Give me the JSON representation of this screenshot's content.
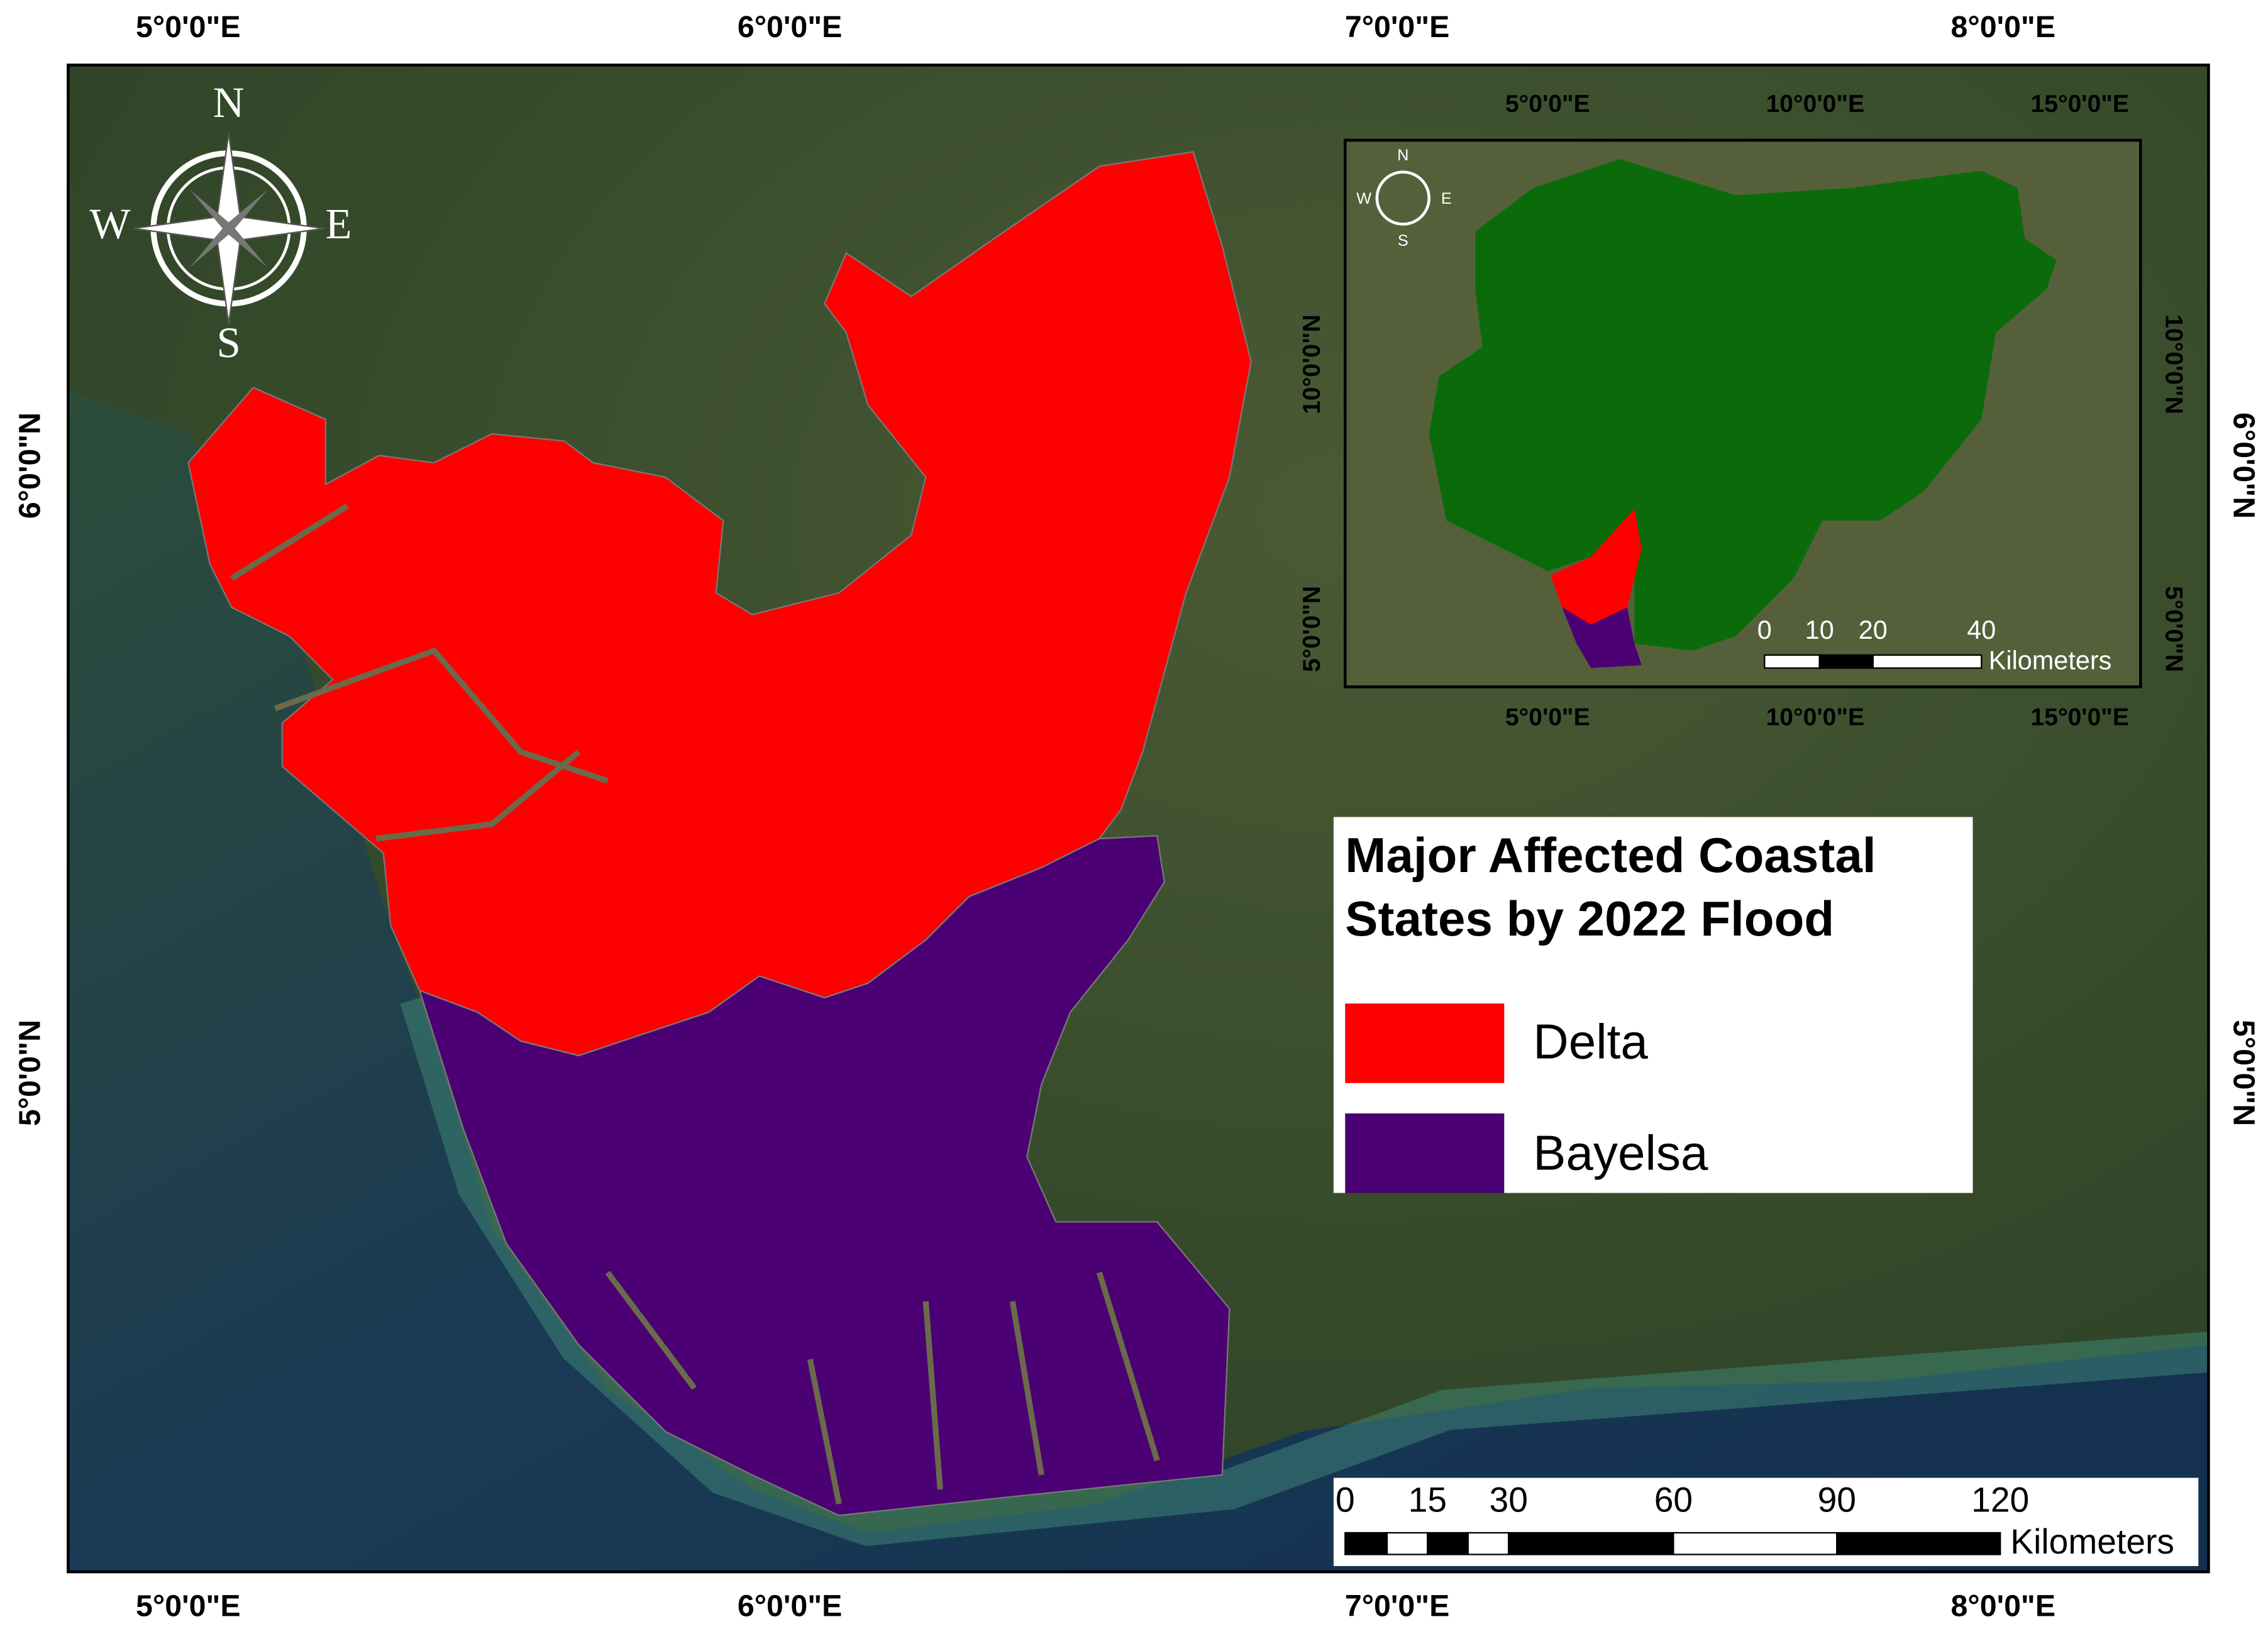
{
  "map": {
    "longitude_labels": [
      "5°0'0\"E",
      "6°0'0\"E",
      "7°0'0\"E",
      "8°0'0\"E"
    ],
    "latitude_labels": [
      "6°0'0\"N",
      "5°0'0\"N"
    ],
    "compass": {
      "n": "N",
      "e": "E",
      "s": "S",
      "w": "W"
    },
    "inset": {
      "longitude_labels": [
        "5°0'0\"E",
        "10°0'0\"E",
        "15°0'0\"E"
      ],
      "latitude_labels": [
        "10°0'0\"N",
        "5°0'0\"N"
      ],
      "compass": {
        "n": "N",
        "e": "E",
        "s": "S",
        "w": "W"
      },
      "country_color": "#0b6b0b",
      "scale_bar": {
        "labels": [
          "0",
          "10",
          "20",
          "40"
        ],
        "unit": "Kilometers"
      }
    },
    "legend": {
      "title": [
        "Major Affected Coastal",
        "States by 2022 Flood"
      ],
      "items": [
        {
          "label": "Delta",
          "color": "#ff0000"
        },
        {
          "label": "Bayelsa",
          "color": "#4b0074"
        }
      ]
    },
    "scale_bar": {
      "labels": [
        "0",
        "15",
        "30",
        "60",
        "90",
        "120"
      ],
      "unit": "Kilometers"
    }
  }
}
